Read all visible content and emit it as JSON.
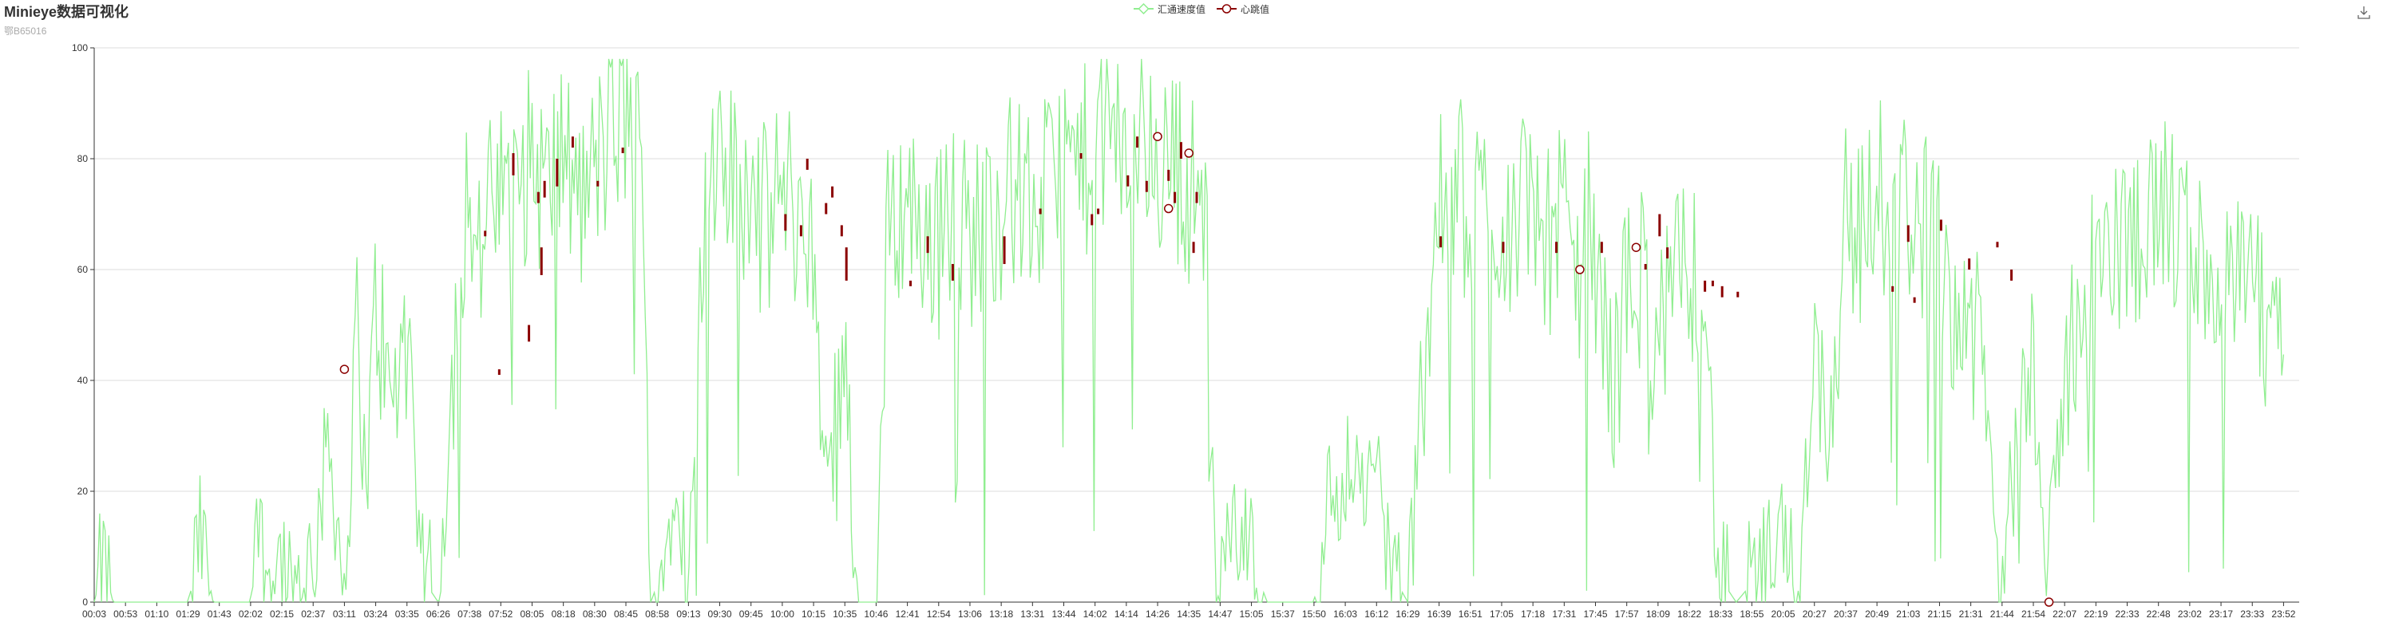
{
  "title": "Minieye数据可视化",
  "subtitle": "鄂B65016",
  "legend": [
    {
      "name": "汇通速度值",
      "color": "#90ee90",
      "icon": "line-diamond-icon"
    },
    {
      "name": "心跳值",
      "color": "#8b0000",
      "icon": "line-circle-icon"
    }
  ],
  "toolbox": {
    "icon": "download-icon"
  },
  "chart_data": {
    "type": "line",
    "title": "Minieye数据可视化",
    "subtitle": "鄂B65016",
    "ylim": [
      0,
      100
    ],
    "y_ticks": [
      0,
      20,
      40,
      60,
      80,
      100
    ],
    "grid": true,
    "legend_position": "top-center",
    "x_tick_labels": [
      "00:03",
      "00:53",
      "01:10",
      "01:29",
      "01:43",
      "02:02",
      "02:15",
      "02:37",
      "03:11",
      "03:24",
      "03:35",
      "06:26",
      "07:38",
      "07:52",
      "08:05",
      "08:18",
      "08:30",
      "08:45",
      "08:58",
      "09:13",
      "09:30",
      "09:45",
      "10:00",
      "10:15",
      "10:35",
      "10:46",
      "12:41",
      "12:54",
      "13:06",
      "13:18",
      "13:31",
      "13:44",
      "14:02",
      "14:14",
      "14:26",
      "14:35",
      "14:47",
      "15:05",
      "15:37",
      "15:50",
      "16:03",
      "16:12",
      "16:29",
      "16:39",
      "16:51",
      "17:05",
      "17:18",
      "17:31",
      "17:45",
      "17:57",
      "18:09",
      "18:22",
      "18:33",
      "18:55",
      "20:05",
      "20:27",
      "20:37",
      "20:49",
      "21:03",
      "21:15",
      "21:31",
      "21:44",
      "21:54",
      "22:07",
      "22:19",
      "22:33",
      "22:48",
      "23:02",
      "23:17",
      "23:33",
      "23:52"
    ],
    "series": [
      {
        "name": "汇通速度值",
        "color": "#90ee90",
        "profile": [
          [
            0,
            0
          ],
          [
            0.3,
            7
          ],
          [
            0.6,
            0
          ],
          [
            3,
            0
          ],
          [
            3.4,
            12
          ],
          [
            3.8,
            0
          ],
          [
            5,
            0
          ],
          [
            5.2,
            15
          ],
          [
            5.5,
            5
          ],
          [
            6,
            8
          ],
          [
            6.4,
            3
          ],
          [
            7,
            8
          ],
          [
            7.5,
            30
          ],
          [
            8,
            2
          ],
          [
            8.4,
            48
          ],
          [
            8.7,
            20
          ],
          [
            9,
            55
          ],
          [
            9.5,
            35
          ],
          [
            10,
            50
          ],
          [
            10.4,
            5
          ],
          [
            11,
            0
          ],
          [
            11.6,
            55
          ],
          [
            12,
            80
          ],
          [
            12.2,
            60
          ],
          [
            12.6,
            70
          ],
          [
            13,
            72
          ],
          [
            13.5,
            75
          ],
          [
            14,
            80
          ],
          [
            14.5,
            74
          ],
          [
            15,
            82
          ],
          [
            15.5,
            70
          ],
          [
            16,
            78
          ],
          [
            16.6,
            85
          ],
          [
            17,
            88
          ],
          [
            17.5,
            82
          ],
          [
            17.8,
            0
          ],
          [
            18.3,
            8
          ],
          [
            18.6,
            30
          ],
          [
            19,
            0
          ],
          [
            19.5,
            70
          ],
          [
            20,
            75
          ],
          [
            20.5,
            78
          ],
          [
            21,
            72
          ],
          [
            21.5,
            68
          ],
          [
            22,
            75
          ],
          [
            22.5,
            70
          ],
          [
            23,
            60
          ],
          [
            23.5,
            20
          ],
          [
            24,
            50
          ],
          [
            24.4,
            0
          ],
          [
            25,
            0
          ],
          [
            25.4,
            70
          ],
          [
            26,
            72
          ],
          [
            26.5,
            68
          ],
          [
            27,
            65
          ],
          [
            27.5,
            70
          ],
          [
            28,
            66
          ],
          [
            28.5,
            70
          ],
          [
            29,
            72
          ],
          [
            29.5,
            75
          ],
          [
            30,
            70
          ],
          [
            30.5,
            74
          ],
          [
            31,
            80
          ],
          [
            31.5,
            78
          ],
          [
            32,
            82
          ],
          [
            32.5,
            85
          ],
          [
            33,
            80
          ],
          [
            33.5,
            85
          ],
          [
            34,
            78
          ],
          [
            34.5,
            80
          ],
          [
            35,
            75
          ],
          [
            35.5,
            72
          ],
          [
            35.9,
            0
          ],
          [
            36.5,
            20
          ],
          [
            37,
            8
          ],
          [
            37.5,
            0
          ],
          [
            39,
            0
          ],
          [
            39.5,
            18
          ],
          [
            40,
            25
          ],
          [
            40.5,
            20
          ],
          [
            41,
            25
          ],
          [
            41.5,
            5
          ],
          [
            42,
            0
          ],
          [
            42.6,
            50
          ],
          [
            43,
            70
          ],
          [
            43.5,
            75
          ],
          [
            44,
            70
          ],
          [
            44.5,
            72
          ],
          [
            45,
            68
          ],
          [
            45.5,
            70
          ],
          [
            46,
            72
          ],
          [
            46.5,
            66
          ],
          [
            47,
            68
          ],
          [
            47.4,
            60
          ],
          [
            47.8,
            68
          ],
          [
            48.2,
            50
          ],
          [
            48.6,
            40
          ],
          [
            49,
            55
          ],
          [
            49.5,
            60
          ],
          [
            50,
            45
          ],
          [
            50.5,
            55
          ],
          [
            51,
            62
          ],
          [
            51.5,
            58
          ],
          [
            51.9,
            5
          ],
          [
            52.5,
            0
          ],
          [
            54,
            10
          ],
          [
            54.5,
            3
          ],
          [
            55,
            48
          ],
          [
            55.5,
            30
          ],
          [
            56,
            72
          ],
          [
            56.5,
            65
          ],
          [
            57,
            75
          ],
          [
            57.5,
            70
          ],
          [
            58,
            72
          ],
          [
            58.5,
            68
          ],
          [
            59,
            62
          ],
          [
            59.5,
            55
          ],
          [
            60,
            50
          ],
          [
            60.5,
            38
          ],
          [
            60.9,
            0
          ],
          [
            61.5,
            30
          ],
          [
            62,
            50
          ],
          [
            62.4,
            0
          ],
          [
            63,
            40
          ],
          [
            63.5,
            55
          ],
          [
            64,
            60
          ],
          [
            64.5,
            62
          ],
          [
            65,
            65
          ],
          [
            65.5,
            68
          ],
          [
            66,
            70
          ],
          [
            66.5,
            68
          ],
          [
            67,
            65
          ],
          [
            67.5,
            60
          ],
          [
            68,
            58
          ],
          [
            68.5,
            55
          ],
          [
            69,
            62
          ],
          [
            69.5,
            40
          ],
          [
            70,
            48
          ]
        ],
        "points_rendered": 1200
      },
      {
        "name": "心跳值",
        "color": "#8b0000",
        "candles": [
          [
            12.5,
            66,
            67
          ],
          [
            12.95,
            41,
            42
          ],
          [
            13.4,
            77,
            81
          ],
          [
            13.9,
            47,
            50
          ],
          [
            14.2,
            72,
            74
          ],
          [
            14.3,
            59,
            64
          ],
          [
            14.4,
            73,
            76
          ],
          [
            14.8,
            75,
            80
          ],
          [
            15.3,
            82,
            84
          ],
          [
            16.1,
            75,
            76
          ],
          [
            16.9,
            81,
            82
          ],
          [
            22.1,
            67,
            70
          ],
          [
            22.6,
            66,
            68
          ],
          [
            22.8,
            78,
            80
          ],
          [
            23.4,
            70,
            72
          ],
          [
            23.6,
            73,
            75
          ],
          [
            23.9,
            66,
            68
          ],
          [
            24.05,
            58,
            64
          ],
          [
            26.1,
            57,
            58
          ],
          [
            26.65,
            63,
            66
          ],
          [
            27.45,
            58,
            61
          ],
          [
            29.1,
            61,
            66
          ],
          [
            30.25,
            70,
            71
          ],
          [
            31.55,
            80,
            81
          ],
          [
            31.9,
            68,
            70
          ],
          [
            32.1,
            70,
            71
          ],
          [
            33.05,
            75,
            77
          ],
          [
            33.35,
            82,
            84
          ],
          [
            33.65,
            74,
            76
          ],
          [
            34.35,
            76,
            78
          ],
          [
            34.55,
            72,
            74
          ],
          [
            34.75,
            80,
            83
          ],
          [
            35.15,
            63,
            65
          ],
          [
            35.25,
            72,
            74
          ],
          [
            43.05,
            64,
            66
          ],
          [
            45.05,
            63,
            65
          ],
          [
            46.75,
            63,
            65
          ],
          [
            48.2,
            63,
            65
          ],
          [
            49.6,
            60,
            61
          ],
          [
            50.05,
            66,
            70
          ],
          [
            50.3,
            62,
            64
          ],
          [
            51.5,
            56,
            58
          ],
          [
            51.75,
            57,
            58
          ],
          [
            52.05,
            55,
            57
          ],
          [
            52.55,
            55,
            56
          ],
          [
            57.5,
            56,
            57
          ],
          [
            58.0,
            65,
            68
          ],
          [
            58.2,
            54,
            55
          ],
          [
            59.05,
            67,
            69
          ],
          [
            59.95,
            60,
            62
          ],
          [
            60.85,
            64,
            65
          ],
          [
            61.3,
            58,
            60
          ]
        ],
        "markers": [
          [
            8.0,
            42
          ],
          [
            34.0,
            84
          ],
          [
            34.35,
            71
          ],
          [
            35.0,
            81
          ],
          [
            47.5,
            60
          ],
          [
            49.3,
            64
          ],
          [
            62.5,
            0
          ]
        ]
      }
    ]
  }
}
